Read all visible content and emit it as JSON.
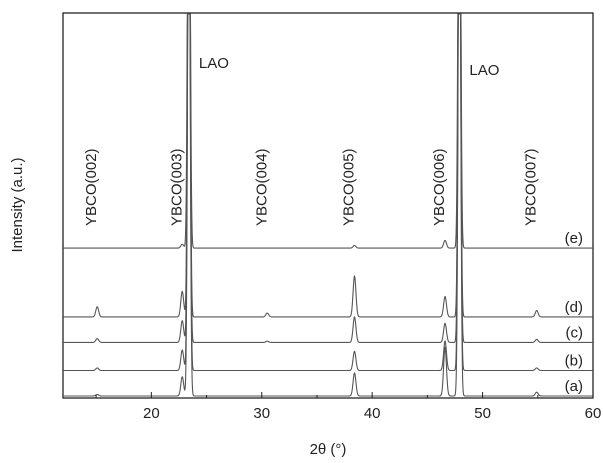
{
  "chart_data": {
    "type": "line",
    "xlabel": "2θ (°)",
    "ylabel": "Intensity (a.u.)",
    "xlim": [
      12,
      60
    ],
    "x_ticks": [
      20,
      30,
      40,
      50,
      60
    ],
    "x_tick_labels": [
      "20",
      "30",
      "40",
      "50",
      "60"
    ],
    "y_ticks_shown": false,
    "grid": false,
    "peak_annotations": [
      {
        "text": "YBCO(002)",
        "x": 15.1
      },
      {
        "text": "YBCO(003)",
        "x": 22.8
      },
      {
        "text": "YBCO(004)",
        "x": 30.5
      },
      {
        "text": "YBCO(005)",
        "x": 38.4
      },
      {
        "text": "YBCO(006)",
        "x": 46.6
      },
      {
        "text": "YBCO(007)",
        "x": 54.9
      }
    ],
    "substrate_annotations": [
      {
        "text": "LAO",
        "x": 23.4
      },
      {
        "text": "LAO",
        "x": 47.9
      }
    ],
    "substrate_peaks": [
      23.4,
      47.9
    ],
    "series": [
      {
        "name": "(a)",
        "baseline": 0.0,
        "peaks": [
          {
            "x": 15.1,
            "h": 0.06
          },
          {
            "x": 22.8,
            "h": 0.75
          },
          {
            "x": 38.4,
            "h": 0.9
          },
          {
            "x": 46.6,
            "h": 1.9
          },
          {
            "x": 54.9,
            "h": 0.15
          }
        ]
      },
      {
        "name": "(b)",
        "baseline": 1.0,
        "peaks": [
          {
            "x": 15.1,
            "h": 0.1
          },
          {
            "x": 22.8,
            "h": 0.8
          },
          {
            "x": 38.4,
            "h": 0.75
          },
          {
            "x": 46.6,
            "h": 1.15
          },
          {
            "x": 54.9,
            "h": 0.1
          }
        ]
      },
      {
        "name": "(c)",
        "baseline": 2.1,
        "peaks": [
          {
            "x": 15.1,
            "h": 0.15
          },
          {
            "x": 22.8,
            "h": 0.85
          },
          {
            "x": 30.5,
            "h": 0.05
          },
          {
            "x": 38.4,
            "h": 1.0
          },
          {
            "x": 46.6,
            "h": 0.75
          },
          {
            "x": 54.9,
            "h": 0.12
          }
        ]
      },
      {
        "name": "(d)",
        "baseline": 3.1,
        "peaks": [
          {
            "x": 15.1,
            "h": 0.4
          },
          {
            "x": 22.8,
            "h": 1.0
          },
          {
            "x": 30.5,
            "h": 0.15
          },
          {
            "x": 38.4,
            "h": 1.6
          },
          {
            "x": 46.6,
            "h": 0.8
          },
          {
            "x": 54.9,
            "h": 0.25
          }
        ]
      },
      {
        "name": "(e)",
        "baseline": 5.8,
        "peaks": [
          {
            "x": 22.8,
            "h": 0.15
          },
          {
            "x": 38.4,
            "h": 0.1
          },
          {
            "x": 46.6,
            "h": 0.3
          }
        ]
      }
    ]
  }
}
